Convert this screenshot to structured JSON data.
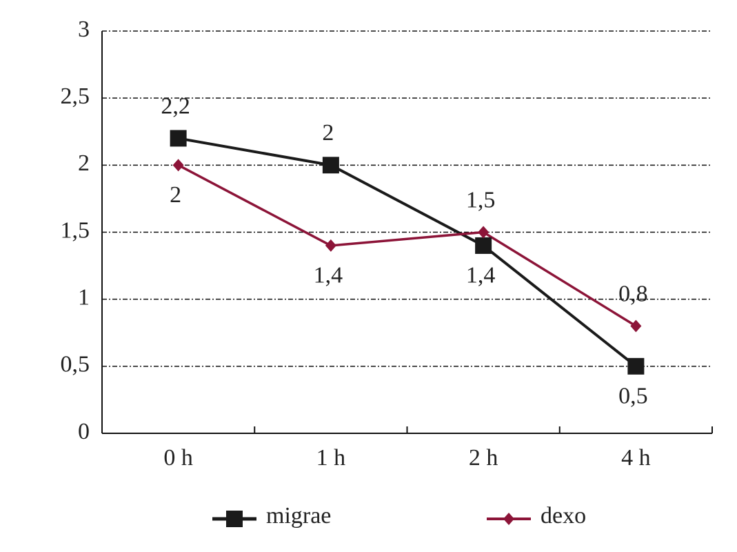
{
  "chart_data": {
    "type": "line",
    "categories": [
      "0 h",
      "1 h",
      "2 h",
      "4 h"
    ],
    "series": [
      {
        "name": "migrae",
        "color": "#1a1a1a",
        "values": [
          2.2,
          2,
          1.4,
          0.5
        ],
        "value_labels": [
          "2,2",
          "2",
          "1,4",
          "0,5"
        ]
      },
      {
        "name": "dexo",
        "color": "#8c1438",
        "values": [
          2,
          1.4,
          1.5,
          0.8
        ],
        "value_labels": [
          "2",
          "1,4",
          "1,5",
          "0,8"
        ]
      }
    ],
    "ylim": [
      0,
      3
    ],
    "yticks": [
      0,
      {
        "value": 0.5,
        "label": "0,5"
      },
      1,
      {
        "value": 1.5,
        "label": "1,5"
      },
      2,
      {
        "value": 2.5,
        "label": "2,5"
      },
      3
    ],
    "grid": true
  }
}
